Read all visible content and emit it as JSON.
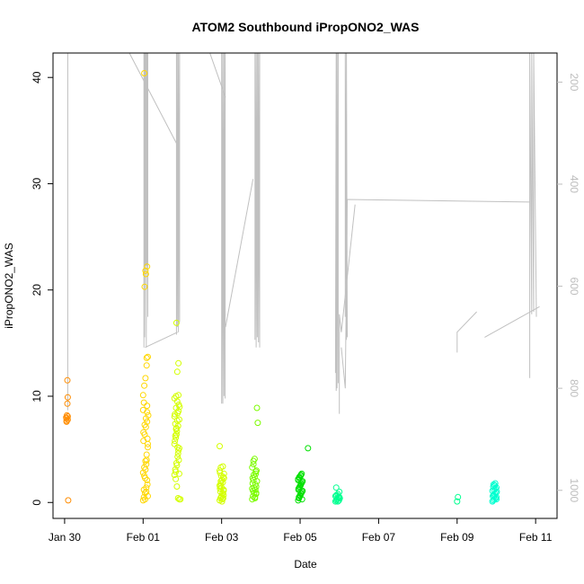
{
  "chart_data": {
    "type": "scatter",
    "title": "ATOM2 Southbound iPropONO2_WAS",
    "xlabel": "Date",
    "ylabel": "iPropONO2_WAS",
    "x_ticks": [
      "Jan 30",
      "Feb 01",
      "Feb 03",
      "Feb 05",
      "Feb 07",
      "Feb 09",
      "Feb 11"
    ],
    "y_ticks": [
      "0",
      "10",
      "20",
      "30",
      "40"
    ],
    "y2_ticks": [
      "200",
      "400",
      "600",
      "800",
      "1000"
    ],
    "xlim_days": [
      -2.25,
      10.5
    ],
    "ylim": [
      -1.5,
      42.3
    ],
    "y2lim_reversed": [
      143,
      1055
    ],
    "grid": false,
    "legend": "none",
    "colors": {
      "axis": "#000000",
      "secondary_axis": "#bdbdbd",
      "pressure_line": "#c0c0c0",
      "point_gradient": [
        "#ff8c00",
        "#ffd700",
        "#d4ff00",
        "#7cfc00",
        "#00e000",
        "#00ff90",
        "#00ffd0"
      ]
    },
    "series": [
      {
        "x_day": [
          -1.95,
          -1.95,
          -1.96,
          -1.94,
          -1.95,
          -1.93,
          -1.92,
          -1.93,
          -1.91,
          -1.92,
          -1.92
        ],
        "y": [
          7.7,
          7.9,
          8.0,
          8.2,
          7.6,
          9.3,
          9.9,
          11.5,
          0.2,
          7.8,
          8.1
        ]
      },
      {
        "x_day": [
          0.0,
          0.02,
          0.05,
          0.08,
          0.1,
          0.0,
          0.03,
          0.06,
          0.09,
          0.12,
          0.01,
          0.04,
          0.07,
          0.1,
          0.13,
          0.0,
          0.02,
          0.05,
          0.08,
          0.11,
          0.03,
          0.06,
          0.09,
          0.12,
          0.01,
          0.04,
          0.07,
          0.1,
          0.0,
          0.03,
          0.06,
          0.09,
          0.12,
          0.02,
          0.05,
          0.08,
          0.11,
          0.04,
          0.07,
          0.1,
          0.06,
          0.03,
          0.09,
          0.12,
          0.1
        ],
        "y": [
          0.2,
          0.5,
          0.9,
          1.4,
          2.1,
          2.8,
          3.3,
          3.9,
          4.5,
          5.2,
          5.8,
          6.4,
          7.1,
          7.6,
          8.2,
          8.7,
          9.4,
          0.3,
          1.0,
          1.7,
          2.5,
          3.1,
          4.0,
          5.5,
          6.6,
          7.3,
          7.9,
          8.5,
          10.1,
          11.0,
          11.7,
          12.9,
          13.7,
          1.2,
          2.3,
          3.6,
          6.0,
          20.3,
          21.5,
          22.2,
          21.8,
          40.4,
          13.6,
          0.6,
          9.1
        ]
      },
      {
        "x_day": [
          0.8,
          0.82,
          0.85,
          0.88,
          0.9,
          0.8,
          0.83,
          0.86,
          0.89,
          0.92,
          0.81,
          0.84,
          0.87,
          0.9,
          0.93,
          0.8,
          0.82,
          0.85,
          0.88,
          0.91,
          0.83,
          0.86,
          0.89,
          0.92,
          0.81,
          0.84,
          0.87,
          0.9,
          0.8,
          0.83,
          0.86,
          0.89,
          0.92,
          0.82,
          0.85,
          0.88,
          0.91,
          0.84,
          0.87,
          0.9,
          0.85,
          0.92,
          0.95
        ],
        "y": [
          2.6,
          3.1,
          3.7,
          4.3,
          4.9,
          5.5,
          6.1,
          6.7,
          7.2,
          7.8,
          8.3,
          8.9,
          9.5,
          10.1,
          9.0,
          8.1,
          7.4,
          6.4,
          5.2,
          4.0,
          2.2,
          1.5,
          0.4,
          0.3,
          5.8,
          6.9,
          7.7,
          8.6,
          9.8,
          2.9,
          3.5,
          4.6,
          5.1,
          6.3,
          7.0,
          8.4,
          9.2,
          10.0,
          12.3,
          13.1,
          16.9,
          2.7,
          0.3
        ]
      },
      {
        "x_day": [
          1.95,
          1.97,
          2.0,
          2.03,
          2.05,
          1.96,
          1.98,
          2.01,
          2.04,
          2.06,
          1.95,
          1.98,
          2.02,
          2.05,
          1.97,
          2.0,
          2.03,
          2.06,
          1.96,
          1.99,
          2.02,
          2.05,
          1.95,
          1.98,
          2.01,
          2.04,
          1.96,
          1.99,
          2.03,
          1.95
        ],
        "y": [
          0.2,
          0.4,
          0.6,
          0.9,
          1.2,
          1.5,
          1.8,
          2.1,
          2.4,
          2.7,
          3.0,
          3.3,
          0.3,
          0.7,
          1.0,
          1.4,
          1.9,
          2.3,
          2.8,
          0.5,
          0.8,
          1.1,
          1.6,
          2.0,
          0.1,
          0.4,
          1.3,
          2.5,
          3.4,
          5.3
        ]
      },
      {
        "x_day": [
          2.78,
          2.8,
          2.83,
          2.86,
          2.88,
          2.79,
          2.81,
          2.84,
          2.87,
          2.89,
          2.78,
          2.81,
          2.85,
          2.88,
          2.8,
          2.83,
          2.86,
          2.9,
          2.79,
          2.82,
          2.85,
          2.88,
          2.78,
          2.81,
          2.84,
          2.87,
          2.9,
          2.92
        ],
        "y": [
          0.3,
          0.6,
          0.9,
          1.2,
          1.5,
          1.8,
          2.1,
          2.4,
          2.7,
          3.0,
          3.3,
          3.6,
          0.4,
          0.8,
          1.1,
          1.4,
          1.7,
          2.0,
          2.3,
          2.6,
          0.5,
          0.9,
          1.3,
          3.9,
          4.1,
          2.9,
          8.9,
          7.5
        ]
      },
      {
        "x_day": [
          3.95,
          3.97,
          4.0,
          4.02,
          4.05,
          3.96,
          3.98,
          4.01,
          4.03,
          4.06,
          3.95,
          3.98,
          4.02,
          4.05,
          3.97,
          4.0,
          4.03,
          4.06,
          3.96,
          3.99,
          4.02,
          4.05,
          3.95,
          3.98,
          4.01,
          4.04,
          4.2
        ],
        "y": [
          0.2,
          0.4,
          0.6,
          0.8,
          1.0,
          1.2,
          1.4,
          1.6,
          1.8,
          2.0,
          2.2,
          2.4,
          2.6,
          0.3,
          0.5,
          0.7,
          0.9,
          1.1,
          1.3,
          1.5,
          1.7,
          1.9,
          2.1,
          2.3,
          2.5,
          2.7,
          5.1
        ]
      },
      {
        "x_day": [
          4.9,
          4.92,
          4.95,
          4.98,
          5.0,
          4.91,
          4.93,
          4.96,
          4.99,
          5.01,
          4.9,
          4.94,
          4.97,
          5.0,
          4.92,
          4.96
        ],
        "y": [
          0.1,
          0.2,
          0.3,
          0.4,
          0.5,
          0.6,
          0.7,
          0.8,
          0.2,
          0.4,
          0.6,
          0.3,
          0.5,
          1.0,
          1.4,
          0.1
        ]
      },
      {
        "x_day": [
          8.0,
          8.02
        ],
        "y": [
          0.1,
          0.5
        ]
      },
      {
        "x_day": [
          8.9,
          8.92,
          8.95,
          8.98,
          9.0,
          8.91,
          8.93,
          8.96,
          8.99,
          9.01,
          8.9,
          8.94,
          8.97,
          9.0,
          8.92,
          8.96,
          8.93,
          8.97,
          9.0,
          8.95
        ],
        "y": [
          0.1,
          0.2,
          0.3,
          0.4,
          0.5,
          0.6,
          0.7,
          0.8,
          0.9,
          1.0,
          1.1,
          1.2,
          1.3,
          1.4,
          1.5,
          1.6,
          1.7,
          1.8,
          0.3,
          0.6
        ]
      }
    ],
    "pressure_profiles": [
      {
        "x_day": [
          -1.92,
          -1.92,
          -1.92
        ],
        "p": [
          143,
          843,
          143
        ]
      },
      {
        "x_day": [
          -1.9,
          -0.65,
          0.0
        ],
        "p": [
          143,
          143,
          143
        ]
      },
      {
        "x_day": [
          -0.35,
          0.85
        ],
        "p": [
          143,
          320
        ]
      },
      {
        "x_day": [
          0.02,
          0.02,
          0.04,
          0.04,
          0.06,
          0.06,
          0.08,
          0.08,
          0.1,
          0.1,
          0.12,
          0.12
        ],
        "p": [
          143,
          720,
          143,
          700,
          143,
          560,
          143,
          720,
          143,
          560,
          143,
          660
        ]
      },
      {
        "x_day": [
          0.05,
          0.88
        ],
        "p": [
          720,
          690
        ]
      },
      {
        "x_day": [
          0.85,
          0.85,
          0.87,
          0.87,
          0.9,
          0.9,
          0.93,
          0.93
        ],
        "p": [
          143,
          695,
          143,
          680,
          143,
          690,
          143,
          670
        ]
      },
      {
        "x_day": [
          1.7,
          2.1
        ],
        "p": [
          143,
          230
        ]
      },
      {
        "x_day": [
          2.0,
          2.0,
          2.03,
          2.03,
          2.06,
          2.06,
          2.09,
          2.09
        ],
        "p": [
          143,
          830,
          143,
          830,
          143,
          815,
          143,
          820
        ]
      },
      {
        "x_day": [
          2.1,
          2.8
        ],
        "p": [
          680,
          390
        ]
      },
      {
        "x_day": [
          2.85,
          2.85,
          2.88,
          2.88,
          2.91,
          2.91,
          2.94,
          2.94,
          2.97,
          2.97
        ],
        "p": [
          143,
          705,
          143,
          720,
          143,
          700,
          143,
          710,
          143,
          720
        ]
      },
      {
        "x_day": [
          4.9,
          4.92,
          4.92,
          4.94,
          4.94,
          4.97,
          4.97
        ],
        "p": [
          770,
          143,
          805,
          143,
          800,
          143,
          790
        ]
      },
      {
        "x_day": [
          5.0,
          5.0,
          5.05,
          5.4
        ],
        "p": [
          850,
          655,
          690,
          440
        ]
      },
      {
        "x_day": [
          5.15,
          5.15,
          5.18,
          5.18,
          5.2
        ],
        "p": [
          660,
          143,
          705,
          143,
          700
        ]
      },
      {
        "x_day": [
          5.05,
          5.15,
          5.2,
          9.85
        ],
        "p": [
          720,
          800,
          430,
          435
        ]
      },
      {
        "x_day": [
          9.85,
          9.85,
          9.9,
          9.9,
          9.95,
          9.95,
          10.02
        ],
        "p": [
          780,
          143,
          655,
          143,
          650,
          143,
          660
        ]
      },
      {
        "x_day": [
          8.0,
          8.0,
          8.5
        ],
        "p": [
          730,
          690,
          650
        ]
      },
      {
        "x_day": [
          8.7,
          10.1
        ],
        "p": [
          700,
          640
        ]
      }
    ]
  }
}
